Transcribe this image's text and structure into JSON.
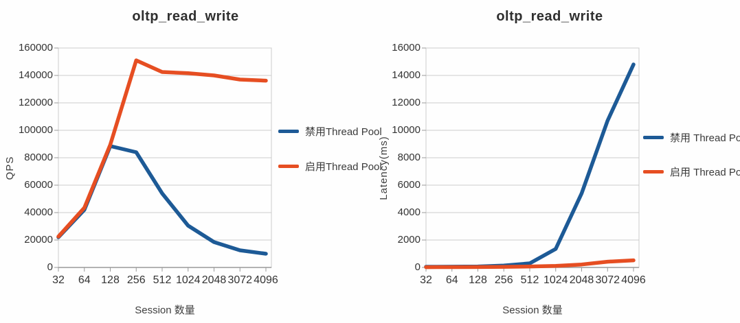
{
  "page": {
    "background": "#fefefe",
    "accent_blue": "#1d5a96",
    "accent_orange": "#e64e22",
    "gridline_color": "#cccccc",
    "axis_color": "#999999"
  },
  "chart_data": [
    {
      "type": "line",
      "title": "oltp_read_write",
      "xlabel": "Session 数量",
      "ylabel": "QPS",
      "categories": [
        "32",
        "64",
        "128",
        "256",
        "512",
        "1024",
        "2048",
        "3072",
        "4096"
      ],
      "ylim": [
        0,
        160000
      ],
      "ytick_step": 20000,
      "grid": true,
      "legend_position": "right",
      "series": [
        {
          "name": "禁用Thread Pool",
          "color": "#1d5a96",
          "values": [
            22000,
            42000,
            88500,
            84000,
            54000,
            30500,
            18500,
            12500,
            10000
          ]
        },
        {
          "name": "启用Thread Pool",
          "color": "#e64e22",
          "values": [
            22500,
            43500,
            89500,
            151000,
            142500,
            141600,
            140000,
            137000,
            136200
          ]
        }
      ]
    },
    {
      "type": "line",
      "title": "oltp_read_write",
      "xlabel": "Session 数量",
      "ylabel": "Latency(ms)",
      "categories": [
        "32",
        "64",
        "128",
        "256",
        "512",
        "1024",
        "2048",
        "3072",
        "4096"
      ],
      "ylim": [
        0,
        16000
      ],
      "ytick_step": 2000,
      "grid": true,
      "legend_position": "right",
      "series": [
        {
          "name": "禁用 Thread Pool",
          "color": "#1d5a96",
          "values": [
            50,
            55,
            70,
            135,
            300,
            1350,
            5400,
            10700,
            14800
          ]
        },
        {
          "name": "启用 Thread Pool",
          "color": "#e64e22",
          "values": [
            20,
            25,
            30,
            45,
            70,
            115,
            215,
            420,
            520
          ]
        }
      ]
    }
  ]
}
